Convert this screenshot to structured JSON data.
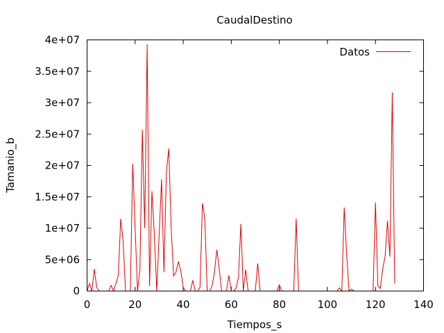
{
  "colors": {
    "series": "#e00000",
    "axes": "#000000",
    "background": "#ffffff"
  },
  "chart_data": {
    "type": "line",
    "title": "CaudalDestino",
    "xlabel": "Tiempos_s",
    "ylabel": "Tamanio_b",
    "xlim": [
      0,
      140
    ],
    "ylim": [
      0,
      40000000
    ],
    "xticks": [
      0,
      20,
      40,
      60,
      80,
      100,
      120,
      140
    ],
    "xtick_labels": [
      "0",
      "20",
      "40",
      "60",
      "80",
      "100",
      "120",
      "140"
    ],
    "yticks": [
      0,
      5000000,
      10000000,
      15000000,
      20000000,
      25000000,
      30000000,
      35000000,
      40000000
    ],
    "ytick_labels": [
      "0",
      "5e+06",
      "1e+07",
      "1.5e+07",
      "2e+07",
      "2.5e+07",
      "3e+07",
      "3.5e+07",
      "4e+07"
    ],
    "grid": false,
    "legend_position": "top-right",
    "series": [
      {
        "name": "Datos",
        "color": "#e00000",
        "x": [
          0,
          1,
          2,
          3,
          4,
          5,
          6,
          7,
          8,
          9,
          10,
          11,
          12,
          13,
          14,
          15,
          16,
          17,
          18,
          19,
          20,
          21,
          22,
          23,
          24,
          25,
          26,
          27,
          28,
          29,
          30,
          31,
          32,
          33,
          34,
          35,
          36,
          37,
          38,
          39,
          40,
          41,
          42,
          43,
          44,
          45,
          46,
          47,
          48,
          49,
          50,
          51,
          52,
          53,
          54,
          55,
          56,
          57,
          58,
          59,
          60,
          61,
          62,
          63,
          64,
          65,
          66,
          67,
          68,
          69,
          70,
          71,
          72,
          73,
          74,
          75,
          76,
          77,
          78,
          79,
          80,
          81,
          82,
          83,
          84,
          85,
          86,
          87,
          88,
          89,
          90,
          91,
          92,
          93,
          94,
          95,
          96,
          97,
          98,
          99,
          100,
          101,
          102,
          103,
          104,
          105,
          106,
          107,
          108,
          109,
          110,
          111,
          112,
          113,
          114,
          115,
          116,
          117,
          118,
          119,
          120,
          121,
          122,
          123,
          124,
          125,
          126,
          127,
          128
        ],
        "y": [
          0,
          1200000,
          0,
          3500000,
          600000,
          0,
          0,
          0,
          0,
          0,
          900000,
          0,
          1200000,
          2500000,
          11500000,
          8000000,
          0,
          0,
          0,
          20300000,
          10000000,
          0,
          3500000,
          25700000,
          10000000,
          39300000,
          800000,
          15900000,
          9000000,
          0,
          9000000,
          17800000,
          3000000,
          19000000,
          22700000,
          10000000,
          2400000,
          3000000,
          4700000,
          3200000,
          600000,
          0,
          0,
          0,
          1700000,
          0,
          0,
          600000,
          14000000,
          11500000,
          0,
          0,
          800000,
          3000000,
          6600000,
          3500000,
          0,
          0,
          0,
          2500000,
          0,
          0,
          500000,
          2200000,
          10700000,
          0,
          3400000,
          0,
          0,
          0,
          0,
          4400000,
          0,
          0,
          0,
          0,
          0,
          0,
          0,
          0,
          1000000,
          0,
          0,
          0,
          0,
          0,
          0,
          11500000,
          0,
          0,
          0,
          0,
          0,
          0,
          0,
          0,
          0,
          0,
          0,
          0,
          0,
          0,
          0,
          0,
          0,
          500000,
          0,
          13300000,
          6000000,
          0,
          300000,
          0,
          0,
          0,
          0,
          0,
          0,
          0,
          0,
          0,
          14100000,
          800000,
          400000,
          3500000,
          5500000,
          11200000,
          5500000,
          31600000,
          1200000
        ]
      }
    ]
  }
}
